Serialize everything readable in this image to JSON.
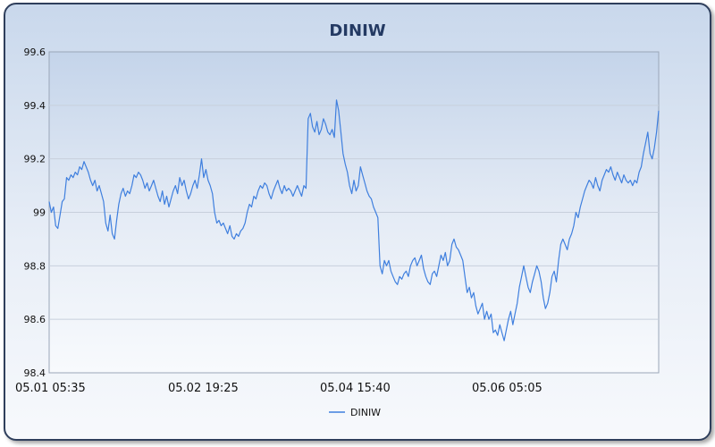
{
  "chart_data": {
    "type": "line",
    "title": "DINIW",
    "xlabel": "",
    "ylabel": "",
    "ylim": [
      98.4,
      99.6
    ],
    "yticks": [
      "99.6",
      "99.4",
      "99.2",
      "99",
      "98.8",
      "98.6",
      "98.4"
    ],
    "xticks": [
      "05.01 05:35",
      "05.02 19:25",
      "05.04 15:40",
      "05.06 05:05"
    ],
    "grid": true,
    "legend_position": "bottom-center",
    "colors": {
      "series": "#3f7fde",
      "grid": "#c7cfdc",
      "title": "#243a63"
    },
    "series": [
      {
        "name": "DINIW",
        "values": [
          99.04,
          99.0,
          99.02,
          98.95,
          98.94,
          98.99,
          99.04,
          99.05,
          99.13,
          99.12,
          99.14,
          99.13,
          99.15,
          99.14,
          99.17,
          99.16,
          99.19,
          99.17,
          99.15,
          99.12,
          99.1,
          99.12,
          99.08,
          99.1,
          99.07,
          99.04,
          98.96,
          98.93,
          98.99,
          98.92,
          98.9,
          98.97,
          99.03,
          99.07,
          99.09,
          99.06,
          99.08,
          99.07,
          99.1,
          99.14,
          99.13,
          99.15,
          99.14,
          99.12,
          99.09,
          99.11,
          99.08,
          99.1,
          99.12,
          99.09,
          99.06,
          99.04,
          99.08,
          99.03,
          99.06,
          99.02,
          99.05,
          99.08,
          99.1,
          99.07,
          99.13,
          99.1,
          99.12,
          99.08,
          99.05,
          99.07,
          99.1,
          99.12,
          99.09,
          99.14,
          99.2,
          99.13,
          99.16,
          99.12,
          99.1,
          99.07,
          99.0,
          98.96,
          98.97,
          98.95,
          98.96,
          98.94,
          98.92,
          98.95,
          98.91,
          98.9,
          98.92,
          98.91,
          98.93,
          98.94,
          98.96,
          99.0,
          99.03,
          99.02,
          99.06,
          99.05,
          99.08,
          99.1,
          99.09,
          99.11,
          99.1,
          99.07,
          99.05,
          99.08,
          99.1,
          99.12,
          99.09,
          99.07,
          99.1,
          99.08,
          99.09,
          99.08,
          99.06,
          99.08,
          99.1,
          99.08,
          99.06,
          99.1,
          99.09,
          99.35,
          99.37,
          99.32,
          99.3,
          99.34,
          99.29,
          99.31,
          99.35,
          99.33,
          99.3,
          99.29,
          99.31,
          99.28,
          99.42,
          99.38,
          99.3,
          99.22,
          99.18,
          99.15,
          99.1,
          99.07,
          99.12,
          99.08,
          99.1,
          99.17,
          99.14,
          99.11,
          99.08,
          99.06,
          99.05,
          99.02,
          99.0,
          98.98,
          98.8,
          98.77,
          98.82,
          98.8,
          98.82,
          98.78,
          98.76,
          98.74,
          98.73,
          98.76,
          98.75,
          98.77,
          98.78,
          98.76,
          98.8,
          98.82,
          98.83,
          98.8,
          98.82,
          98.84,
          98.79,
          98.76,
          98.74,
          98.73,
          98.77,
          98.78,
          98.76,
          98.8,
          98.84,
          98.82,
          98.85,
          98.8,
          98.82,
          98.88,
          98.9,
          98.87,
          98.86,
          98.84,
          98.82,
          98.76,
          98.7,
          98.72,
          98.68,
          98.7,
          98.65,
          98.62,
          98.64,
          98.66,
          98.6,
          98.63,
          98.6,
          98.62,
          98.55,
          98.56,
          98.54,
          98.58,
          98.55,
          98.52,
          98.56,
          98.6,
          98.63,
          98.58,
          98.62,
          98.66,
          98.72,
          98.76,
          98.8,
          98.76,
          98.72,
          98.7,
          98.74,
          98.77,
          98.8,
          98.78,
          98.74,
          98.68,
          98.64,
          98.66,
          98.7,
          98.76,
          98.78,
          98.74,
          98.82,
          98.88,
          98.9,
          98.88,
          98.86,
          98.9,
          98.92,
          98.95,
          99.0,
          98.98,
          99.02,
          99.05,
          99.08,
          99.1,
          99.12,
          99.11,
          99.09,
          99.13,
          99.1,
          99.08,
          99.12,
          99.14,
          99.16,
          99.15,
          99.17,
          99.14,
          99.12,
          99.15,
          99.13,
          99.11,
          99.14,
          99.12,
          99.11,
          99.12,
          99.1,
          99.12,
          99.11,
          99.15,
          99.17,
          99.22,
          99.26,
          99.3,
          99.22,
          99.2,
          99.24,
          99.3,
          99.38
        ]
      }
    ]
  }
}
